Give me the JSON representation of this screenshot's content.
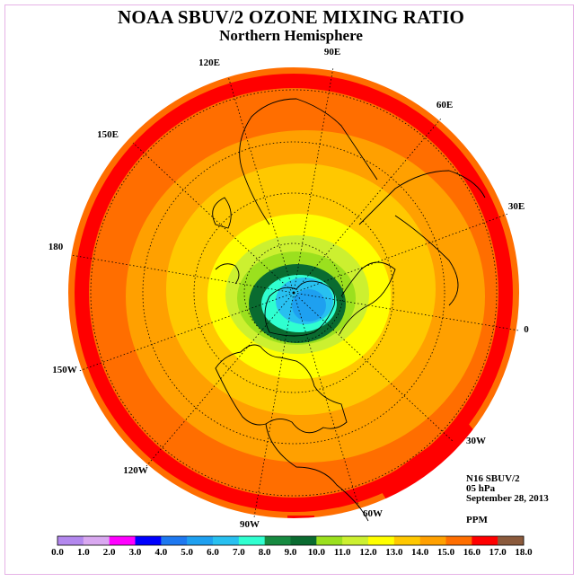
{
  "title": "NOAA SBUV/2 OZONE MIXING RATIO",
  "subtitle": "Northern Hemisphere",
  "info": {
    "satellite": "N16 SBUV/2",
    "level": "05 hPa",
    "date": "September 28, 2013",
    "unit": "PPM"
  },
  "longitude_labels": [
    "90E",
    "120E",
    "60E",
    "150E",
    "30E",
    "180",
    "0",
    "150W",
    "30W",
    "120W",
    "60W",
    "90W"
  ],
  "colorbar": {
    "ticks": [
      "0.0",
      "1.0",
      "2.0",
      "3.0",
      "4.0",
      "5.0",
      "6.0",
      "7.0",
      "8.0",
      "9.0",
      "10.0",
      "11.0",
      "12.0",
      "13.0",
      "14.0",
      "15.0",
      "16.0",
      "17.0",
      "18.0"
    ],
    "colors": [
      "#b388ee",
      "#d9a8f0",
      "#ff00ff",
      "#0000ff",
      "#1e78f0",
      "#1ea0f0",
      "#28c0f0",
      "#30ffd0",
      "#168a40",
      "#0a6b30",
      "#9be01e",
      "#ccf030",
      "#ffff00",
      "#ffc800",
      "#ffa000",
      "#ff6e00",
      "#ff0000",
      "#8b5a3c"
    ]
  },
  "map": {
    "projection": "north-polar-stereographic",
    "field_levels_ppm": [
      9.5,
      10.5,
      11.5,
      12.5,
      13.5,
      14.5,
      15.5,
      16.5
    ]
  }
}
